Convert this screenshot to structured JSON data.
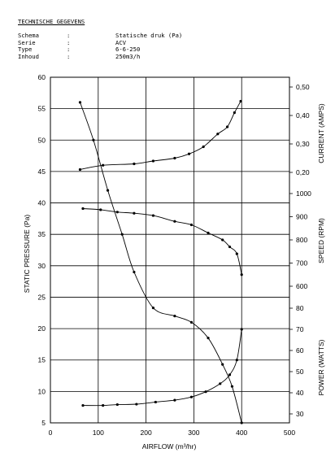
{
  "spec": {
    "title": "TECHNISCHE GEGEVENS",
    "rows": [
      {
        "key": "Schema",
        "colon": ":",
        "value": "Statische druk (Pa)"
      },
      {
        "key": "Serie",
        "colon": ":",
        "value": "ACV"
      },
      {
        "key": "Type",
        "colon": ":",
        "value": "6-6-250"
      },
      {
        "key": "Inhoud",
        "colon": ":",
        "value": "250m3/h"
      }
    ]
  },
  "chart_data": {
    "type": "line",
    "xlabel": "AIRFLOW (m³/hr)",
    "ylabel": "STATIC PRESSURE (Pa)",
    "xlim": [
      0,
      500
    ],
    "ylim": [
      5,
      60
    ],
    "x_ticks": [
      "0",
      "100",
      "200",
      "300",
      "400",
      "500"
    ],
    "y_ticks": [
      "5",
      "10",
      "15",
      "20",
      "25",
      "30",
      "35",
      "40",
      "45",
      "50",
      "55",
      "60"
    ],
    "right_axes": [
      {
        "label": "CURRENT (AMPS)",
        "ticks": [
          "0,20",
          "0,30",
          "0,40",
          "0,50"
        ],
        "range": [
          0.2,
          0.5
        ]
      },
      {
        "label": "SPEED (RPM)",
        "ticks": [
          "600",
          "700",
          "800",
          "900",
          "1000"
        ],
        "range": [
          600,
          1000
        ]
      },
      {
        "label": "POWER (WATTS)",
        "ticks": [
          "30",
          "40",
          "50",
          "60",
          "70",
          "80"
        ],
        "range": [
          30,
          80
        ]
      }
    ],
    "grid": true,
    "series": [
      {
        "axis": "CURRENT (AMPS)",
        "x": [
          62,
          110,
          175,
          215,
          260,
          290,
          320,
          350,
          370,
          385,
          398
        ],
        "values": [
          0.21,
          0.225,
          0.23,
          0.24,
          0.25,
          0.265,
          0.29,
          0.335,
          0.36,
          0.41,
          0.45
        ]
      },
      {
        "axis": "SPEED (RPM)",
        "x": [
          68,
          105,
          140,
          175,
          215,
          260,
          295,
          330,
          360,
          375,
          390,
          400
        ],
        "values": [
          935,
          930,
          920,
          915,
          905,
          880,
          865,
          830,
          800,
          770,
          740,
          650
        ]
      },
      {
        "axis": "STATIC PRESSURE (Pa)",
        "x": [
          62,
          90,
          120,
          150,
          175,
          215,
          260,
          295,
          330,
          360,
          380,
          400
        ],
        "values": [
          56,
          50,
          42,
          35,
          29,
          23.3,
          22,
          21,
          18.5,
          14.3,
          10.8,
          5
        ]
      },
      {
        "axis": "POWER (WATTS)",
        "x": [
          68,
          110,
          140,
          180,
          220,
          260,
          295,
          325,
          355,
          375,
          390,
          400
        ],
        "values": [
          34,
          34,
          34.4,
          34.6,
          35.6,
          36.5,
          38,
          40.5,
          44.3,
          48.5,
          55.5,
          70
        ]
      }
    ]
  }
}
